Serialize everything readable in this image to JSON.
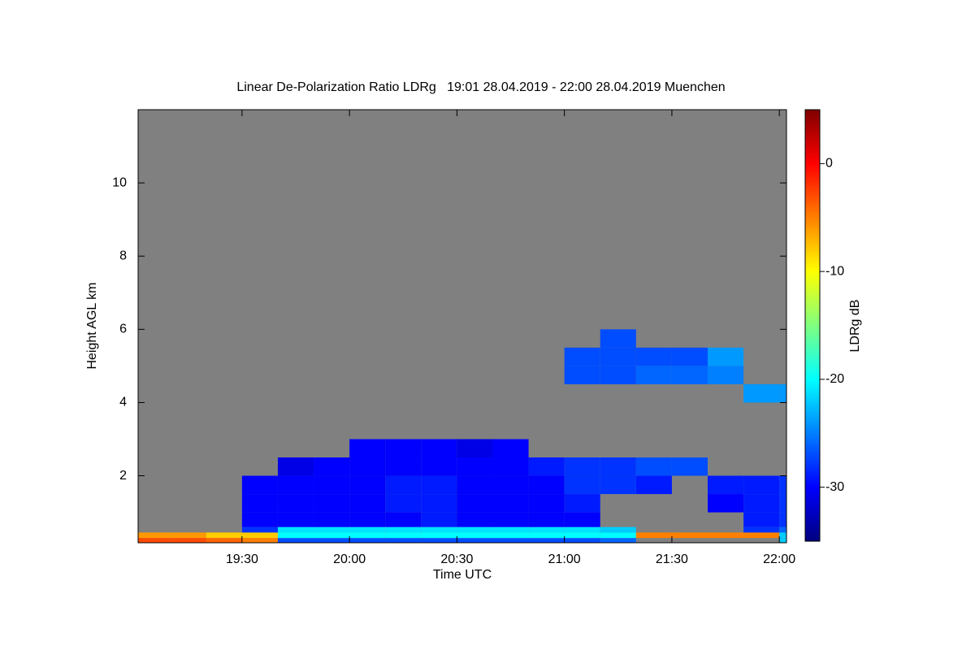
{
  "chart_data": {
    "type": "heatmap",
    "title": "Linear De-Polarization Ratio LDRg   19:01 28.04.2019 - 22:00 28.04.2019 Muenchen",
    "x_label": "Time UTC",
    "y_label": "Height AGL km",
    "colorbar_label": "LDRg dB",
    "colormap": "jet",
    "nodata_color": "#808080",
    "xlim": [
      1141,
      1322
    ],
    "xticks": [
      {
        "value": 1170,
        "label": "19:30"
      },
      {
        "value": 1200,
        "label": "20:00"
      },
      {
        "value": 1230,
        "label": "20:30"
      },
      {
        "value": 1260,
        "label": "21:00"
      },
      {
        "value": 1290,
        "label": "21:30"
      },
      {
        "value": 1320,
        "label": "22:00"
      }
    ],
    "ylim": [
      0.17,
      12
    ],
    "yticks": [
      2,
      4,
      6,
      8,
      10
    ],
    "clim": [
      -35,
      5
    ],
    "cticks": [
      0,
      -10,
      -20,
      -30
    ],
    "x_edges": [
      1141,
      1150,
      1160,
      1170,
      1180,
      1190,
      1200,
      1210,
      1220,
      1230,
      1240,
      1250,
      1260,
      1270,
      1280,
      1290,
      1300,
      1310,
      1320,
      1322
    ],
    "y_edges": [
      0.17,
      0.3,
      0.45,
      0.6,
      1,
      1.5,
      2,
      2.5,
      3,
      4,
      4.5,
      5,
      5.5,
      6
    ],
    "values": [
      [
        -3,
        -3,
        -4,
        -5,
        -27,
        -27,
        -27,
        -27,
        -27,
        -27,
        -27,
        -27,
        -27,
        -26,
        null,
        null,
        null,
        null,
        -22
      ],
      [
        -6,
        -6,
        -8,
        -8,
        -20,
        -20,
        -20,
        -20,
        -20,
        -20,
        -20,
        -20,
        -20,
        -20,
        -5,
        -5,
        -5,
        -5,
        -22
      ],
      [
        null,
        null,
        null,
        -28,
        -21,
        -21,
        -21,
        -21,
        -21,
        -21,
        -21,
        -21,
        -21,
        -22,
        null,
        null,
        null,
        -28,
        -26
      ],
      [
        null,
        null,
        null,
        -30,
        -30,
        -30,
        -30,
        -30,
        -29,
        -30,
        -30,
        -30,
        -30,
        null,
        null,
        null,
        null,
        -29,
        -28
      ],
      [
        null,
        null,
        null,
        -30,
        -30,
        -30,
        -30,
        -29,
        -29,
        -30,
        -30,
        -30,
        -29,
        null,
        null,
        null,
        -30,
        -29,
        -28
      ],
      [
        null,
        null,
        null,
        -30,
        -30,
        -30,
        -30,
        -29,
        -29,
        -30,
        -30,
        -30,
        -28,
        -28,
        -29,
        null,
        -29,
        -29,
        -28
      ],
      [
        null,
        null,
        null,
        null,
        -31,
        -30,
        -30,
        -30,
        -30,
        -30,
        -30,
        -29,
        -28,
        -28,
        -27,
        -27,
        null,
        null,
        null
      ],
      [
        null,
        null,
        null,
        null,
        null,
        null,
        -30,
        -30,
        -30,
        -31,
        -30,
        null,
        null,
        null,
        null,
        null,
        null,
        null,
        null
      ],
      [
        null,
        null,
        null,
        null,
        null,
        null,
        null,
        null,
        null,
        null,
        null,
        null,
        null,
        null,
        null,
        null,
        null,
        null,
        null
      ],
      [
        null,
        null,
        null,
        null,
        null,
        null,
        null,
        null,
        null,
        null,
        null,
        null,
        null,
        null,
        null,
        null,
        null,
        -24,
        -24
      ],
      [
        null,
        null,
        null,
        null,
        null,
        null,
        null,
        null,
        null,
        null,
        null,
        null,
        -27,
        -27,
        -26,
        -26,
        -25,
        null,
        null
      ],
      [
        null,
        null,
        null,
        null,
        null,
        null,
        null,
        null,
        null,
        null,
        null,
        null,
        -27,
        -27,
        -27,
        -27,
        -24,
        null,
        null
      ],
      [
        null,
        null,
        null,
        null,
        null,
        null,
        null,
        null,
        null,
        null,
        null,
        null,
        null,
        -27,
        null,
        null,
        null,
        null,
        null
      ]
    ]
  }
}
